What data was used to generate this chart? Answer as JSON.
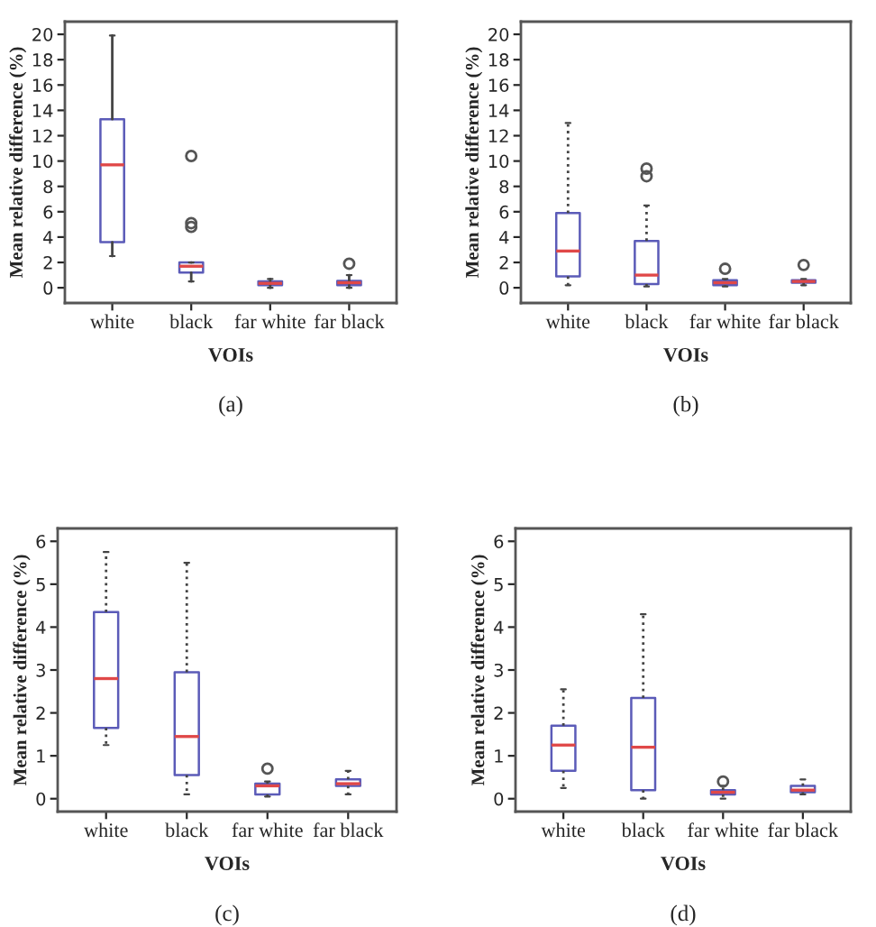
{
  "chart_data": [
    {
      "type": "box",
      "categories": [
        "white",
        "black",
        "far white",
        "far black"
      ],
      "xlabel": "VOIs",
      "ylabel": "Mean relative difference (%)",
      "ylim": [
        -1.2,
        21
      ],
      "yticks": [
        0,
        2,
        4,
        6,
        8,
        10,
        12,
        14,
        16,
        18,
        20
      ],
      "line_style": "solid",
      "annotations": [
        "(a)"
      ],
      "series": [
        {
          "color": "#5b5bb8",
          "boxes": [
            {
              "low": 2.5,
              "q1": 3.6,
              "median": 9.7,
              "q3": 13.3,
              "high": 19.9
            },
            {
              "low": 0.5,
              "q1": 1.2,
              "median": 1.7,
              "q3": 2.0,
              "high": 2.0,
              "outliers": [
                10.4,
                5.1,
                4.8
              ]
            },
            {
              "low": 0.0,
              "q1": 0.2,
              "median": 0.35,
              "q3": 0.5,
              "high": 0.7
            },
            {
              "low": 0.0,
              "q1": 0.2,
              "median": 0.4,
              "q3": 0.55,
              "high": 1.0,
              "outliers": [
                1.9
              ]
            }
          ]
        }
      ]
    },
    {
      "type": "box",
      "categories": [
        "white",
        "black",
        "far white",
        "far black"
      ],
      "xlabel": "VOIs",
      "ylabel": "Mean relative difference (%)",
      "ylim": [
        -1.2,
        21
      ],
      "yticks": [
        0,
        2,
        4,
        6,
        8,
        10,
        12,
        14,
        16,
        18,
        20
      ],
      "line_style": "dotted",
      "annotations": [
        "(b)"
      ],
      "series": [
        {
          "color": "#5b5bb8",
          "boxes": [
            {
              "low": 0.2,
              "q1": 0.9,
              "median": 2.9,
              "q3": 5.9,
              "high": 13.0
            },
            {
              "low": 0.1,
              "q1": 0.3,
              "median": 1.0,
              "q3": 3.7,
              "high": 6.5,
              "outliers": [
                8.8,
                9.4
              ]
            },
            {
              "low": 0.1,
              "q1": 0.2,
              "median": 0.4,
              "q3": 0.6,
              "high": 0.7,
              "outliers": [
                1.5
              ]
            },
            {
              "low": 0.2,
              "q1": 0.4,
              "median": 0.5,
              "q3": 0.6,
              "high": 0.7,
              "outliers": [
                1.8
              ]
            }
          ]
        }
      ]
    },
    {
      "type": "box",
      "categories": [
        "white",
        "black",
        "far white",
        "far black"
      ],
      "xlabel": "VOIs",
      "ylabel": "Mean relative difference (%)",
      "ylim": [
        -0.3,
        6.3
      ],
      "yticks": [
        0,
        1,
        2,
        3,
        4,
        5,
        6
      ],
      "line_style": "dotted",
      "annotations": [
        "(c)"
      ],
      "series": [
        {
          "color": "#5b5bb8",
          "boxes": [
            {
              "low": 1.25,
              "q1": 1.65,
              "median": 2.8,
              "q3": 4.35,
              "high": 5.75
            },
            {
              "low": 0.1,
              "q1": 0.55,
              "median": 1.45,
              "q3": 2.95,
              "high": 5.5
            },
            {
              "low": 0.05,
              "q1": 0.1,
              "median": 0.3,
              "q3": 0.35,
              "high": 0.4,
              "outliers": [
                0.7
              ]
            },
            {
              "low": 0.1,
              "q1": 0.3,
              "median": 0.35,
              "q3": 0.45,
              "high": 0.65
            }
          ]
        }
      ]
    },
    {
      "type": "box",
      "categories": [
        "white",
        "black",
        "far white",
        "far black"
      ],
      "xlabel": "VOIs",
      "ylabel": "Mean relative difference (%)",
      "ylim": [
        -0.3,
        6.3
      ],
      "yticks": [
        0,
        1,
        2,
        3,
        4,
        5,
        6
      ],
      "line_style": "dotted",
      "annotations": [
        "(d)"
      ],
      "series": [
        {
          "color": "#5b5bb8",
          "boxes": [
            {
              "low": 0.25,
              "q1": 0.65,
              "median": 1.25,
              "q3": 1.7,
              "high": 2.55
            },
            {
              "low": 0.0,
              "q1": 0.2,
              "median": 1.2,
              "q3": 2.35,
              "high": 4.3
            },
            {
              "low": 0.0,
              "q1": 0.1,
              "median": 0.15,
              "q3": 0.2,
              "high": 0.3,
              "outliers": [
                0.4
              ]
            },
            {
              "low": 0.1,
              "q1": 0.15,
              "median": 0.2,
              "q3": 0.3,
              "high": 0.45
            }
          ]
        }
      ]
    }
  ]
}
